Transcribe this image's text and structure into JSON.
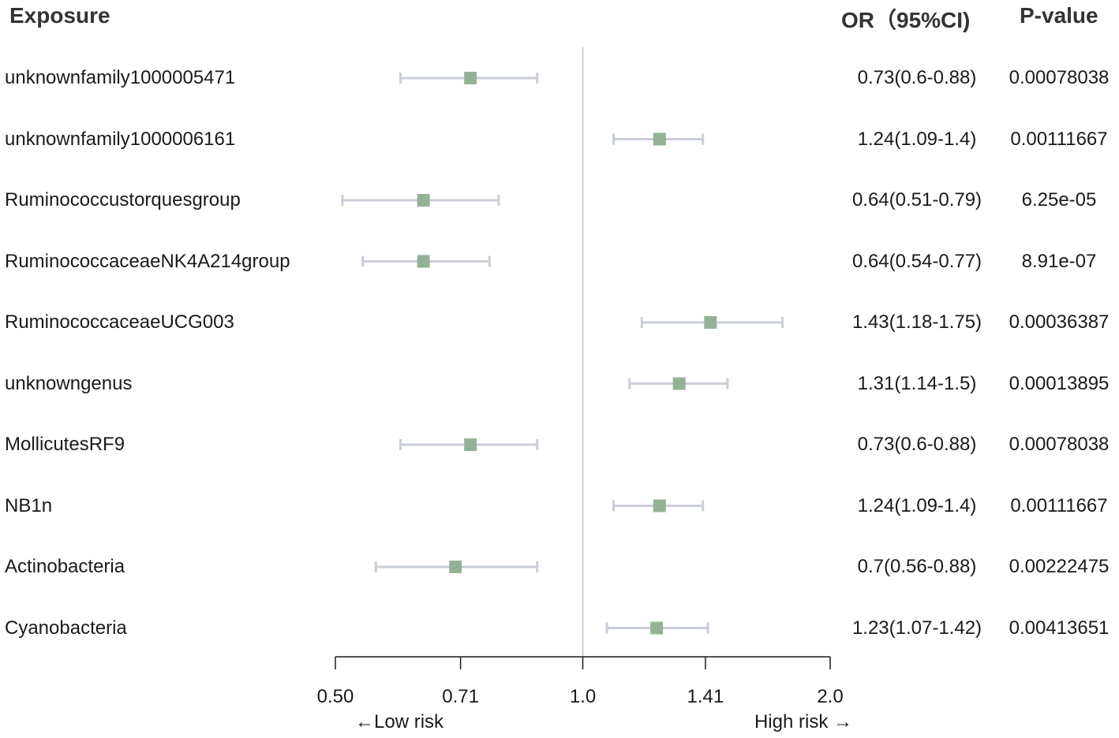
{
  "chart_data": {
    "type": "forest",
    "headers": {
      "exposure": "Exposure",
      "or": "OR（95%CI)",
      "p": "P-value"
    },
    "scale": "log2",
    "xlim": [
      0.5,
      2.0
    ],
    "ref_value": 1.0,
    "ticks": [
      {
        "value": 0.5,
        "label": "0.50"
      },
      {
        "value": 0.71,
        "label": "0.71"
      },
      {
        "value": 1.0,
        "label": "1.0"
      },
      {
        "value": 1.41,
        "label": "1.41"
      },
      {
        "value": 2.0,
        "label": "2.0"
      }
    ],
    "low_risk_label": "←Low risk",
    "high_risk_label": "High risk →",
    "colors": {
      "marker": "#93b295",
      "ci": "#c9ced8",
      "ref_line": "#b9c0cc",
      "axis": "#1a1a1a"
    },
    "rows": [
      {
        "exposure": "unknownfamily1000005471",
        "or": 0.73,
        "lo": 0.6,
        "hi": 0.88,
        "or_text": "0.73(0.6-0.88)",
        "p": "0.00078038"
      },
      {
        "exposure": "unknownfamily1000006161",
        "or": 1.24,
        "lo": 1.09,
        "hi": 1.4,
        "or_text": "1.24(1.09-1.4)",
        "p": "0.00111667"
      },
      {
        "exposure": "Ruminococcustorquesgroup",
        "or": 0.64,
        "lo": 0.51,
        "hi": 0.79,
        "or_text": "0.64(0.51-0.79)",
        "p": "6.25e-05"
      },
      {
        "exposure": "RuminococcaceaeNK4A214group",
        "or": 0.64,
        "lo": 0.54,
        "hi": 0.77,
        "or_text": "0.64(0.54-0.77)",
        "p": "8.91e-07"
      },
      {
        "exposure": "RuminococcaceaeUCG003",
        "or": 1.43,
        "lo": 1.18,
        "hi": 1.75,
        "or_text": "1.43(1.18-1.75)",
        "p": "0.00036387"
      },
      {
        "exposure": "unknowngenus",
        "or": 1.31,
        "lo": 1.14,
        "hi": 1.5,
        "or_text": "1.31(1.14-1.5)",
        "p": "0.00013895"
      },
      {
        "exposure": "MollicutesRF9",
        "or": 0.73,
        "lo": 0.6,
        "hi": 0.88,
        "or_text": "0.73(0.6-0.88)",
        "p": "0.00078038"
      },
      {
        "exposure": "NB1n",
        "or": 1.24,
        "lo": 1.09,
        "hi": 1.4,
        "or_text": "1.24(1.09-1.4)",
        "p": "0.00111667"
      },
      {
        "exposure": "Actinobacteria",
        "or": 0.7,
        "lo": 0.56,
        "hi": 0.88,
        "or_text": "0.7(0.56-0.88)",
        "p": "0.00222475"
      },
      {
        "exposure": "Cyanobacteria",
        "or": 1.23,
        "lo": 1.07,
        "hi": 1.42,
        "or_text": "1.23(1.07-1.42)",
        "p": "0.00413651"
      }
    ]
  }
}
